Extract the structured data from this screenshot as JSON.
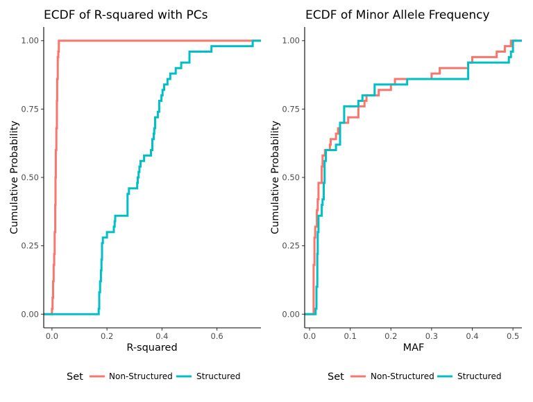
{
  "chart_data": [
    {
      "type": "line",
      "subtype": "ecdf-step",
      "title": "ECDF of R-squared with PCs",
      "xlabel": "R-squared",
      "ylabel": "Cumulative Probability",
      "xlim": [
        -0.03,
        0.76
      ],
      "ylim": [
        -0.05,
        1.05
      ],
      "x_ticks": [
        0.0,
        0.2,
        0.4,
        0.6
      ],
      "x_tick_labels": [
        "0.0",
        "0.2",
        "0.4",
        "0.6"
      ],
      "y_ticks": [
        0.0,
        0.25,
        0.5,
        0.75,
        1.0
      ],
      "y_tick_labels": [
        "0.00",
        "0.25",
        "0.50",
        "0.75",
        "1.00"
      ],
      "grid": false,
      "series": [
        {
          "name": "Non-Structured",
          "color": "#F8766D",
          "points": [
            [
              -0.03,
              0.0
            ],
            [
              0.0,
              0.0
            ],
            [
              0.0,
              0.02
            ],
            [
              0.002,
              0.02
            ],
            [
              0.002,
              0.06
            ],
            [
              0.004,
              0.06
            ],
            [
              0.004,
              0.12
            ],
            [
              0.006,
              0.12
            ],
            [
              0.006,
              0.18
            ],
            [
              0.008,
              0.18
            ],
            [
              0.008,
              0.22
            ],
            [
              0.01,
              0.22
            ],
            [
              0.01,
              0.3
            ],
            [
              0.012,
              0.3
            ],
            [
              0.012,
              0.4
            ],
            [
              0.013,
              0.4
            ],
            [
              0.013,
              0.5
            ],
            [
              0.014,
              0.5
            ],
            [
              0.014,
              0.6
            ],
            [
              0.016,
              0.6
            ],
            [
              0.016,
              0.68
            ],
            [
              0.018,
              0.68
            ],
            [
              0.018,
              0.78
            ],
            [
              0.019,
              0.78
            ],
            [
              0.019,
              0.86
            ],
            [
              0.021,
              0.86
            ],
            [
              0.021,
              0.94
            ],
            [
              0.023,
              0.94
            ],
            [
              0.023,
              0.96
            ],
            [
              0.025,
              0.96
            ],
            [
              0.025,
              1.0
            ],
            [
              0.76,
              1.0
            ]
          ]
        },
        {
          "name": "Structured",
          "color": "#00BFC4",
          "points": [
            [
              -0.03,
              0.0
            ],
            [
              0.17,
              0.0
            ],
            [
              0.17,
              0.02
            ],
            [
              0.172,
              0.02
            ],
            [
              0.172,
              0.08
            ],
            [
              0.175,
              0.08
            ],
            [
              0.175,
              0.12
            ],
            [
              0.178,
              0.12
            ],
            [
              0.178,
              0.16
            ],
            [
              0.18,
              0.16
            ],
            [
              0.18,
              0.2
            ],
            [
              0.182,
              0.2
            ],
            [
              0.182,
              0.26
            ],
            [
              0.185,
              0.26
            ],
            [
              0.185,
              0.28
            ],
            [
              0.2,
              0.28
            ],
            [
              0.2,
              0.3
            ],
            [
              0.225,
              0.3
            ],
            [
              0.225,
              0.32
            ],
            [
              0.228,
              0.32
            ],
            [
              0.228,
              0.34
            ],
            [
              0.23,
              0.34
            ],
            [
              0.23,
              0.36
            ],
            [
              0.275,
              0.36
            ],
            [
              0.275,
              0.44
            ],
            [
              0.28,
              0.44
            ],
            [
              0.28,
              0.46
            ],
            [
              0.31,
              0.46
            ],
            [
              0.31,
              0.48
            ],
            [
              0.312,
              0.48
            ],
            [
              0.312,
              0.5
            ],
            [
              0.315,
              0.5
            ],
            [
              0.315,
              0.52
            ],
            [
              0.318,
              0.52
            ],
            [
              0.318,
              0.54
            ],
            [
              0.322,
              0.54
            ],
            [
              0.322,
              0.56
            ],
            [
              0.335,
              0.56
            ],
            [
              0.335,
              0.58
            ],
            [
              0.36,
              0.58
            ],
            [
              0.36,
              0.6
            ],
            [
              0.365,
              0.6
            ],
            [
              0.365,
              0.64
            ],
            [
              0.37,
              0.64
            ],
            [
              0.37,
              0.66
            ],
            [
              0.372,
              0.66
            ],
            [
              0.372,
              0.68
            ],
            [
              0.375,
              0.68
            ],
            [
              0.375,
              0.72
            ],
            [
              0.385,
              0.72
            ],
            [
              0.385,
              0.74
            ],
            [
              0.39,
              0.74
            ],
            [
              0.39,
              0.78
            ],
            [
              0.398,
              0.78
            ],
            [
              0.398,
              0.8
            ],
            [
              0.402,
              0.8
            ],
            [
              0.402,
              0.82
            ],
            [
              0.408,
              0.82
            ],
            [
              0.408,
              0.84
            ],
            [
              0.42,
              0.84
            ],
            [
              0.42,
              0.86
            ],
            [
              0.43,
              0.86
            ],
            [
              0.43,
              0.88
            ],
            [
              0.45,
              0.88
            ],
            [
              0.45,
              0.9
            ],
            [
              0.47,
              0.9
            ],
            [
              0.47,
              0.92
            ],
            [
              0.5,
              0.92
            ],
            [
              0.5,
              0.96
            ],
            [
              0.58,
              0.96
            ],
            [
              0.58,
              0.98
            ],
            [
              0.73,
              0.98
            ],
            [
              0.73,
              1.0
            ],
            [
              0.76,
              1.0
            ]
          ]
        }
      ]
    },
    {
      "type": "line",
      "subtype": "ecdf-step",
      "title": "ECDF of Minor Allele Frequency",
      "xlabel": "MAF",
      "ylabel": "Cumulative Probability",
      "xlim": [
        -0.012,
        0.522
      ],
      "ylim": [
        -0.05,
        1.05
      ],
      "x_ticks": [
        0.0,
        0.1,
        0.2,
        0.3,
        0.4,
        0.5
      ],
      "x_tick_labels": [
        "0.0",
        "0.1",
        "0.2",
        "0.3",
        "0.4",
        "0.5"
      ],
      "y_ticks": [
        0.0,
        0.25,
        0.5,
        0.75,
        1.0
      ],
      "y_tick_labels": [
        "0.00",
        "0.25",
        "0.50",
        "0.75",
        "1.00"
      ],
      "grid": false,
      "series": [
        {
          "name": "Non-Structured",
          "color": "#F8766D",
          "points": [
            [
              -0.012,
              0.0
            ],
            [
              0.01,
              0.0
            ],
            [
              0.01,
              0.18
            ],
            [
              0.012,
              0.18
            ],
            [
              0.012,
              0.28
            ],
            [
              0.014,
              0.28
            ],
            [
              0.014,
              0.32
            ],
            [
              0.018,
              0.32
            ],
            [
              0.018,
              0.38
            ],
            [
              0.02,
              0.38
            ],
            [
              0.02,
              0.42
            ],
            [
              0.022,
              0.42
            ],
            [
              0.022,
              0.48
            ],
            [
              0.03,
              0.48
            ],
            [
              0.03,
              0.54
            ],
            [
              0.032,
              0.54
            ],
            [
              0.032,
              0.58
            ],
            [
              0.038,
              0.58
            ],
            [
              0.038,
              0.6
            ],
            [
              0.05,
              0.6
            ],
            [
              0.05,
              0.62
            ],
            [
              0.052,
              0.62
            ],
            [
              0.052,
              0.64
            ],
            [
              0.065,
              0.64
            ],
            [
              0.065,
              0.66
            ],
            [
              0.07,
              0.66
            ],
            [
              0.07,
              0.68
            ],
            [
              0.075,
              0.68
            ],
            [
              0.075,
              0.7
            ],
            [
              0.095,
              0.7
            ],
            [
              0.095,
              0.72
            ],
            [
              0.12,
              0.72
            ],
            [
              0.12,
              0.76
            ],
            [
              0.135,
              0.76
            ],
            [
              0.135,
              0.78
            ],
            [
              0.14,
              0.78
            ],
            [
              0.14,
              0.8
            ],
            [
              0.17,
              0.8
            ],
            [
              0.17,
              0.82
            ],
            [
              0.2,
              0.82
            ],
            [
              0.2,
              0.84
            ],
            [
              0.21,
              0.84
            ],
            [
              0.21,
              0.86
            ],
            [
              0.3,
              0.86
            ],
            [
              0.3,
              0.88
            ],
            [
              0.32,
              0.88
            ],
            [
              0.32,
              0.9
            ],
            [
              0.39,
              0.9
            ],
            [
              0.39,
              0.92
            ],
            [
              0.4,
              0.92
            ],
            [
              0.4,
              0.94
            ],
            [
              0.46,
              0.94
            ],
            [
              0.46,
              0.96
            ],
            [
              0.48,
              0.96
            ],
            [
              0.48,
              0.98
            ],
            [
              0.495,
              0.98
            ],
            [
              0.495,
              1.0
            ],
            [
              0.522,
              1.0
            ]
          ]
        },
        {
          "name": "Structured",
          "color": "#00BFC4",
          "points": [
            [
              -0.012,
              0.0
            ],
            [
              0.015,
              0.0
            ],
            [
              0.015,
              0.02
            ],
            [
              0.017,
              0.02
            ],
            [
              0.017,
              0.1
            ],
            [
              0.019,
              0.1
            ],
            [
              0.019,
              0.22
            ],
            [
              0.02,
              0.22
            ],
            [
              0.02,
              0.3
            ],
            [
              0.022,
              0.3
            ],
            [
              0.022,
              0.36
            ],
            [
              0.03,
              0.36
            ],
            [
              0.03,
              0.4
            ],
            [
              0.032,
              0.4
            ],
            [
              0.032,
              0.42
            ],
            [
              0.035,
              0.42
            ],
            [
              0.035,
              0.48
            ],
            [
              0.037,
              0.48
            ],
            [
              0.037,
              0.56
            ],
            [
              0.04,
              0.56
            ],
            [
              0.04,
              0.6
            ],
            [
              0.065,
              0.6
            ],
            [
              0.065,
              0.62
            ],
            [
              0.075,
              0.62
            ],
            [
              0.075,
              0.7
            ],
            [
              0.085,
              0.7
            ],
            [
              0.085,
              0.76
            ],
            [
              0.12,
              0.76
            ],
            [
              0.12,
              0.78
            ],
            [
              0.13,
              0.78
            ],
            [
              0.13,
              0.8
            ],
            [
              0.16,
              0.8
            ],
            [
              0.16,
              0.84
            ],
            [
              0.24,
              0.84
            ],
            [
              0.24,
              0.86
            ],
            [
              0.39,
              0.86
            ],
            [
              0.39,
              0.92
            ],
            [
              0.49,
              0.92
            ],
            [
              0.49,
              0.94
            ],
            [
              0.495,
              0.94
            ],
            [
              0.495,
              0.96
            ],
            [
              0.5,
              0.96
            ],
            [
              0.5,
              1.0
            ],
            [
              0.522,
              1.0
            ]
          ]
        }
      ]
    }
  ],
  "legend": {
    "title": "Set",
    "placement": "bottom",
    "items": [
      {
        "label": "Non-Structured",
        "color": "#F8766D"
      },
      {
        "label": "Structured",
        "color": "#00BFC4"
      }
    ]
  }
}
